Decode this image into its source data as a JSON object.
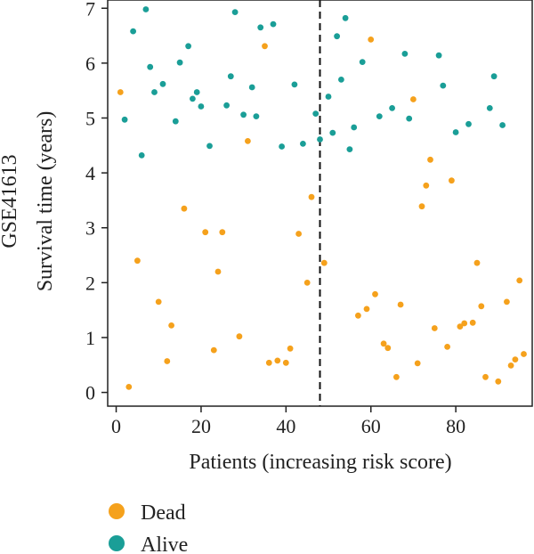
{
  "chart_data": {
    "type": "scatter",
    "dataset_label": "GSE41613",
    "xlabel": "Patients (increasing risk score)",
    "ylabel": "Survival time (years)",
    "xlim": [
      -2,
      98
    ],
    "ylim": [
      -0.25,
      7.15
    ],
    "x_ticks": [
      0,
      20,
      40,
      60,
      80
    ],
    "y_ticks": [
      0,
      1,
      2,
      3,
      4,
      5,
      6,
      7
    ],
    "grid": false,
    "legend_position": "bottom-left",
    "cutoff_x": 48,
    "series": [
      {
        "name": "Dead",
        "color": "#F5A11C",
        "points": [
          [
            1,
            5.47
          ],
          [
            3,
            0.1
          ],
          [
            5,
            2.4
          ],
          [
            10,
            1.65
          ],
          [
            12,
            0.57
          ],
          [
            13,
            1.22
          ],
          [
            16,
            3.35
          ],
          [
            21,
            2.92
          ],
          [
            23,
            0.77
          ],
          [
            24,
            2.2
          ],
          [
            25,
            2.92
          ],
          [
            29,
            1.02
          ],
          [
            31,
            4.58
          ],
          [
            35,
            6.31
          ],
          [
            36,
            0.54
          ],
          [
            38,
            0.58
          ],
          [
            40,
            0.54
          ],
          [
            41,
            0.8
          ],
          [
            43,
            2.89
          ],
          [
            45,
            2.0
          ],
          [
            46,
            3.56
          ],
          [
            49,
            2.36
          ],
          [
            57,
            1.4
          ],
          [
            59,
            1.52
          ],
          [
            60,
            6.43
          ],
          [
            61,
            1.79
          ],
          [
            63,
            0.89
          ],
          [
            64,
            0.81
          ],
          [
            66,
            0.28
          ],
          [
            67,
            1.6
          ],
          [
            70,
            5.34
          ],
          [
            71,
            0.53
          ],
          [
            72,
            3.39
          ],
          [
            73,
            3.77
          ],
          [
            74,
            4.24
          ],
          [
            75,
            1.17
          ],
          [
            78,
            0.83
          ],
          [
            79,
            3.86
          ],
          [
            81,
            1.2
          ],
          [
            82,
            1.26
          ],
          [
            84,
            1.27
          ],
          [
            85,
            2.36
          ],
          [
            86,
            1.57
          ],
          [
            87,
            0.28
          ],
          [
            90,
            0.2
          ],
          [
            92,
            1.65
          ],
          [
            93,
            0.49
          ],
          [
            94,
            0.6
          ],
          [
            95,
            2.04
          ],
          [
            96,
            0.7
          ]
        ]
      },
      {
        "name": "Alive",
        "color": "#1A9E97",
        "points": [
          [
            2,
            4.97
          ],
          [
            4,
            6.58
          ],
          [
            6,
            4.32
          ],
          [
            7,
            6.98
          ],
          [
            8,
            5.93
          ],
          [
            9,
            5.47
          ],
          [
            11,
            5.62
          ],
          [
            14,
            4.94
          ],
          [
            15,
            6.01
          ],
          [
            17,
            6.31
          ],
          [
            18,
            5.35
          ],
          [
            19,
            5.47
          ],
          [
            20,
            5.21
          ],
          [
            22,
            4.49
          ],
          [
            26,
            5.23
          ],
          [
            27,
            5.76
          ],
          [
            28,
            6.93
          ],
          [
            30,
            5.06
          ],
          [
            32,
            5.56
          ],
          [
            33,
            5.03
          ],
          [
            34,
            6.65
          ],
          [
            37,
            6.71
          ],
          [
            39,
            4.48
          ],
          [
            42,
            5.61
          ],
          [
            44,
            4.53
          ],
          [
            47,
            5.08
          ],
          [
            48,
            4.61
          ],
          [
            50,
            5.39
          ],
          [
            51,
            4.73
          ],
          [
            52,
            6.49
          ],
          [
            53,
            5.7
          ],
          [
            54,
            6.82
          ],
          [
            55,
            4.43
          ],
          [
            56,
            4.83
          ],
          [
            58,
            6.02
          ],
          [
            62,
            5.03
          ],
          [
            65,
            5.18
          ],
          [
            68,
            6.17
          ],
          [
            69,
            4.99
          ],
          [
            76,
            6.14
          ],
          [
            77,
            5.59
          ],
          [
            80,
            4.74
          ],
          [
            83,
            4.89
          ],
          [
            88,
            5.18
          ],
          [
            89,
            5.76
          ],
          [
            91,
            4.87
          ]
        ]
      }
    ]
  }
}
